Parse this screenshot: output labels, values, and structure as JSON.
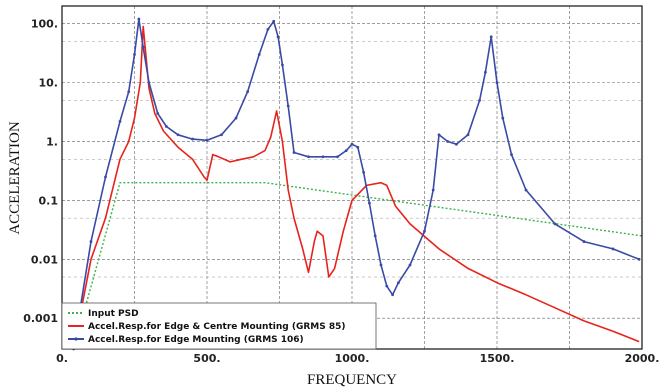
{
  "chart_data": {
    "type": "line",
    "xlabel": "FREQUENCY",
    "ylabel": "ACCELERATION",
    "xlim": [
      0,
      2000
    ],
    "ylim": [
      0.0003,
      200
    ],
    "yscale": "log",
    "grid": true,
    "legend_position": "bottom-left",
    "x_ticks": [
      {
        "value": 0,
        "label": "0."
      },
      {
        "value": 500,
        "label": "500."
      },
      {
        "value": 1000,
        "label": "1000."
      },
      {
        "value": 1500,
        "label": "1500."
      },
      {
        "value": 2000,
        "label": "2000."
      }
    ],
    "y_ticks": [
      {
        "value": 0.001,
        "label": "0.001"
      },
      {
        "value": 0.01,
        "label": "0.01"
      },
      {
        "value": 0.1,
        "label": "0.1"
      },
      {
        "value": 1,
        "label": "1."
      },
      {
        "value": 10,
        "label": "10."
      },
      {
        "value": 100,
        "label": "100."
      }
    ],
    "series": [
      {
        "name": "Input PSD",
        "color": "#3cb44b",
        "style": "dotted",
        "x": [
          40,
          200,
          700,
          2000
        ],
        "y": [
          0.0003,
          0.2,
          0.2,
          0.025
        ]
      },
      {
        "name": "Accel.Resp.for Edge & Centre Mounting  (GRMS 85)",
        "color": "#e8231c",
        "style": "solid",
        "x": [
          40,
          100,
          150,
          200,
          230,
          250,
          270,
          280,
          300,
          320,
          350,
          400,
          450,
          490,
          500,
          520,
          540,
          580,
          620,
          660,
          700,
          720,
          740,
          760,
          780,
          800,
          830,
          850,
          870,
          880,
          900,
          920,
          940,
          970,
          1000,
          1050,
          1100,
          1120,
          1150,
          1200,
          1300,
          1400,
          1500,
          1600,
          1700,
          1800,
          1900,
          1990
        ],
        "y": [
          0.0003,
          0.01,
          0.05,
          0.5,
          1.0,
          2.5,
          10,
          90,
          8,
          3,
          1.5,
          0.8,
          0.5,
          0.25,
          0.22,
          0.6,
          0.55,
          0.45,
          0.5,
          0.55,
          0.7,
          1.2,
          3.3,
          1.0,
          0.15,
          0.05,
          0.015,
          0.006,
          0.02,
          0.03,
          0.025,
          0.005,
          0.007,
          0.03,
          0.1,
          0.18,
          0.2,
          0.18,
          0.08,
          0.04,
          0.015,
          0.007,
          0.004,
          0.0025,
          0.0015,
          0.0009,
          0.0006,
          0.0004
        ]
      },
      {
        "name": "Accel.Resp.for Edge Mounting  (GRMS 106)",
        "color": "#3a4aa5",
        "style": "solid",
        "x": [
          40,
          100,
          150,
          200,
          230,
          250,
          265,
          280,
          300,
          330,
          360,
          400,
          450,
          500,
          550,
          600,
          640,
          680,
          710,
          730,
          745,
          760,
          780,
          800,
          850,
          900,
          950,
          980,
          1000,
          1020,
          1040,
          1060,
          1080,
          1100,
          1120,
          1140,
          1160,
          1200,
          1250,
          1280,
          1300,
          1330,
          1360,
          1400,
          1440,
          1460,
          1480,
          1500,
          1520,
          1550,
          1600,
          1700,
          1800,
          1900,
          1990
        ],
        "y": [
          0.0003,
          0.02,
          0.25,
          2.2,
          7,
          30,
          120,
          40,
          10,
          3,
          1.8,
          1.3,
          1.1,
          1.05,
          1.3,
          2.5,
          7,
          30,
          80,
          110,
          60,
          20,
          4,
          0.65,
          0.55,
          0.55,
          0.55,
          0.7,
          0.9,
          0.8,
          0.3,
          0.09,
          0.025,
          0.008,
          0.0035,
          0.0025,
          0.004,
          0.008,
          0.03,
          0.15,
          1.3,
          1.0,
          0.9,
          1.3,
          5,
          15,
          60,
          10,
          2.5,
          0.6,
          0.15,
          0.04,
          0.02,
          0.015,
          0.01
        ]
      }
    ]
  }
}
